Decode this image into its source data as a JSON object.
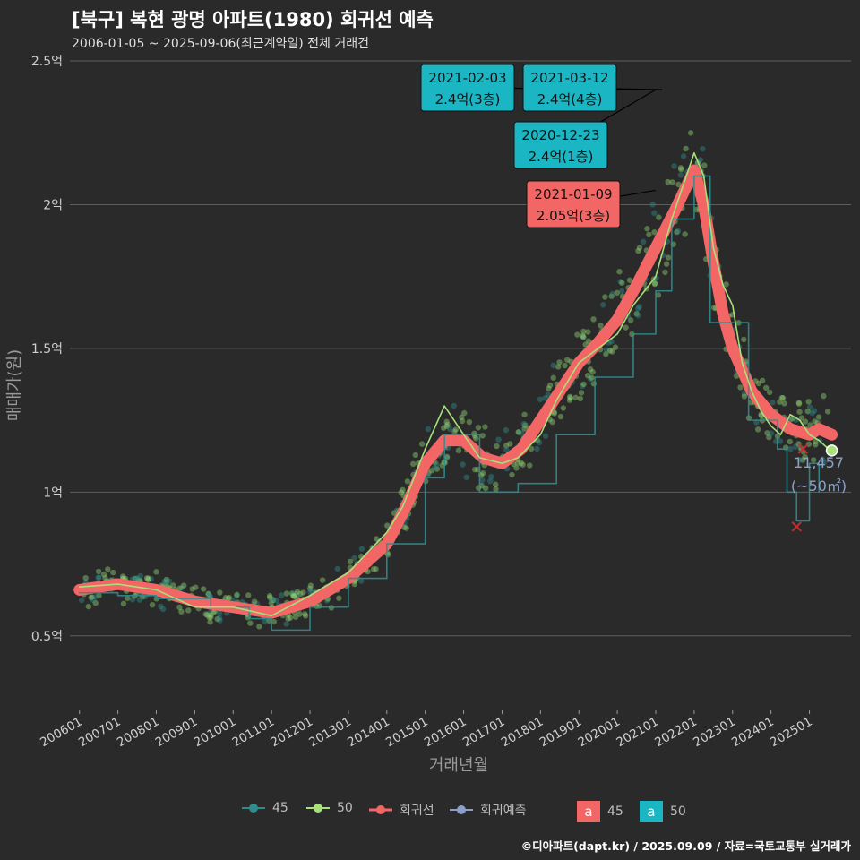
{
  "title": "[북구] 복현 광명 아파트(1980) 회귀선 예측",
  "subtitle": "2006-01-05 ~ 2025-09-06(최근계약일) 전체 거래건",
  "caption": "©디아파트(dapt.kr) / 2025.09.09 / 자료=국토교통부 실거래가",
  "chart_data": {
    "type": "scatter",
    "xlabel": "거래년월",
    "ylabel": "매매가(원)",
    "x_range": [
      "2005-10",
      "2026-02"
    ],
    "ylim": [
      0.25,
      2.55
    ],
    "y_ticks": [
      {
        "value": 0.5,
        "label": "0.5억"
      },
      {
        "value": 1.0,
        "label": "1억"
      },
      {
        "value": 1.5,
        "label": "1.5억"
      },
      {
        "value": 2.0,
        "label": "2억"
      },
      {
        "value": 2.5,
        "label": "2.5억"
      }
    ],
    "x_ticks": [
      "200601",
      "200701",
      "200801",
      "200901",
      "201001",
      "201101",
      "201201",
      "201301",
      "201401",
      "201501",
      "201601",
      "201701",
      "201801",
      "201901",
      "202001",
      "202101",
      "202201",
      "202301",
      "202401",
      "202501"
    ],
    "grid": "horizontal",
    "legend_position": "bottom",
    "series": [
      {
        "name": "45",
        "color": "#2f8c8c",
        "x": [
          "2006-01",
          "2007-01",
          "2008-01",
          "2009-06",
          "2010-06",
          "2011-01",
          "2012-01",
          "2013-01",
          "2014-01",
          "2015-01",
          "2015-07",
          "2016-06",
          "2017-06",
          "2018-06",
          "2019-06",
          "2020-06",
          "2021-01",
          "2021-06",
          "2022-01",
          "2022-06",
          "2023-01",
          "2023-06",
          "2024-01",
          "2024-03",
          "2024-06",
          "2024-09",
          "2025-01",
          "2025-04"
        ],
        "values": [
          0.65,
          0.64,
          0.63,
          0.6,
          0.56,
          0.52,
          0.6,
          0.7,
          0.82,
          1.05,
          1.2,
          1.0,
          1.03,
          1.2,
          1.4,
          1.55,
          1.7,
          1.95,
          2.1,
          1.59,
          1.59,
          1.25,
          1.25,
          1.15,
          1.0,
          0.9,
          1.1,
          1.0
        ]
      },
      {
        "name": "50",
        "color": "#a8e07a",
        "x": [
          "2006-01",
          "2007-01",
          "2008-01",
          "2009-01",
          "2010-01",
          "2011-01",
          "2012-01",
          "2013-01",
          "2014-01",
          "2014-06",
          "2015-01",
          "2015-07",
          "2016-01",
          "2016-06",
          "2017-01",
          "2017-06",
          "2018-01",
          "2018-06",
          "2019-01",
          "2020-01",
          "2020-06",
          "2021-01",
          "2021-06",
          "2022-01",
          "2022-04",
          "2022-07",
          "2022-10",
          "2023-01",
          "2023-04",
          "2023-07",
          "2023-10",
          "2024-01",
          "2024-04",
          "2024-07",
          "2024-10",
          "2025-01",
          "2025-04",
          "2025-07"
        ],
        "values": [
          0.67,
          0.68,
          0.66,
          0.6,
          0.6,
          0.57,
          0.64,
          0.72,
          0.86,
          0.95,
          1.15,
          1.3,
          1.2,
          1.12,
          1.1,
          1.12,
          1.2,
          1.32,
          1.45,
          1.55,
          1.65,
          1.75,
          1.95,
          2.18,
          2.1,
          1.85,
          1.72,
          1.65,
          1.45,
          1.35,
          1.28,
          1.23,
          1.2,
          1.27,
          1.25,
          1.2,
          1.18,
          1.15
        ]
      },
      {
        "name": "회귀선",
        "color": "#f26666",
        "x": [
          "2006-01",
          "2007-01",
          "2008-01",
          "2009-01",
          "2010-01",
          "2011-01",
          "2012-01",
          "2013-01",
          "2014-01",
          "2014-07",
          "2015-01",
          "2015-07",
          "2016-01",
          "2016-07",
          "2017-01",
          "2017-07",
          "2018-01",
          "2018-07",
          "2019-01",
          "2019-07",
          "2020-01",
          "2020-07",
          "2021-01",
          "2021-07",
          "2022-01",
          "2022-04",
          "2022-07",
          "2022-10",
          "2023-01",
          "2023-07",
          "2024-01",
          "2024-07",
          "2025-01",
          "2025-04",
          "2025-08"
        ],
        "values": [
          0.66,
          0.68,
          0.66,
          0.62,
          0.6,
          0.58,
          0.62,
          0.7,
          0.82,
          0.95,
          1.1,
          1.18,
          1.18,
          1.12,
          1.1,
          1.15,
          1.25,
          1.35,
          1.45,
          1.52,
          1.6,
          1.72,
          1.85,
          1.98,
          2.12,
          2.0,
          1.8,
          1.62,
          1.5,
          1.35,
          1.27,
          1.22,
          1.2,
          1.22,
          1.2
        ]
      },
      {
        "name": "회귀예측",
        "color": "#8aa0c8",
        "x": [
          "2025-08"
        ],
        "values": [
          1.145
        ]
      }
    ],
    "annotations": [
      {
        "date": "2021-02-03",
        "text1": "2021-02-03",
        "text2": "2.4억(3층)",
        "x": "2021-03",
        "y": 2.4,
        "fill": "#1bb6c4"
      },
      {
        "date": "2021-03-12",
        "text1": "2021-03-12",
        "text2": "2.4억(4층)",
        "x": "2021-03",
        "y": 2.4,
        "fill": "#1bb6c4"
      },
      {
        "date": "2020-12-23",
        "text1": "2020-12-23",
        "text2": "2.4억(1층)",
        "x": "2021-01",
        "y": 2.4,
        "fill": "#1bb6c4"
      },
      {
        "date": "2021-01-09",
        "text1": "2021-01-09",
        "text2": "2.05억(3층)",
        "x": "2021-01",
        "y": 2.05,
        "fill": "#f26666"
      }
    ],
    "prediction": {
      "value": "11,457",
      "unit": "(~50㎡)",
      "color": "#8aa0c8"
    },
    "extra_legend": [
      {
        "key": "a",
        "label": "45",
        "fill": "#f26666"
      },
      {
        "key": "a",
        "label": "50",
        "fill": "#1bb6c4"
      }
    ]
  }
}
